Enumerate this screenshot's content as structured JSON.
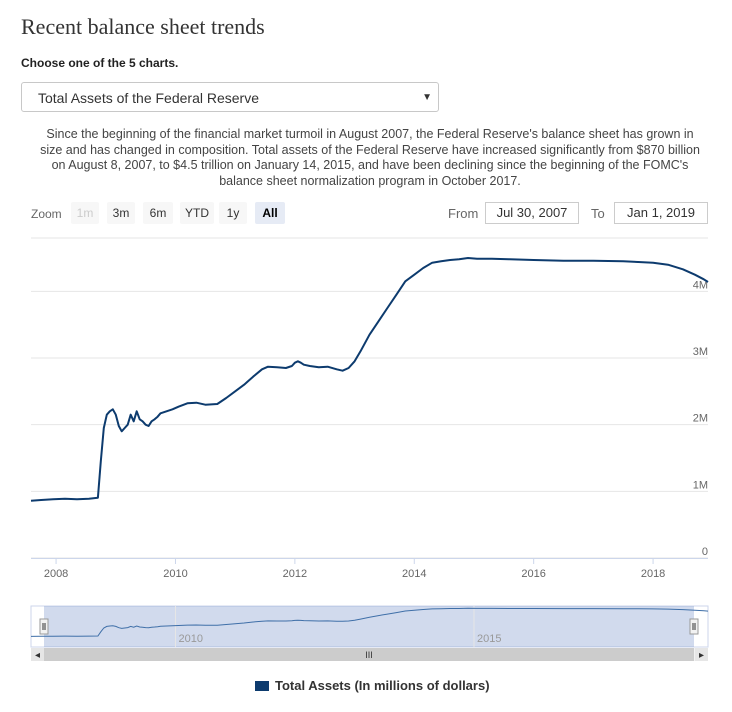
{
  "page_title": "Recent balance sheet trends",
  "chooser_label": "Choose one of the 5 charts.",
  "select": {
    "value": "Total Assets of the Federal Reserve",
    "arrow": "▼"
  },
  "description": "Since the beginning of the financial market turmoil in August 2007, the Federal Reserve's balance sheet has grown in size and has changed in composition. Total assets of the Federal Reserve have increased significantly from $870 billion on August 8, 2007, to $4.5 trillion on January 14, 2015, and have been declining since the beginning of the FOMC's balance sheet normalization program in October 2017.",
  "zoom": {
    "label": "Zoom",
    "buttons": [
      {
        "label": "1m",
        "state": "disabled"
      },
      {
        "label": "3m",
        "state": "normal"
      },
      {
        "label": "6m",
        "state": "normal"
      },
      {
        "label": "YTD",
        "state": "normal"
      },
      {
        "label": "1y",
        "state": "normal"
      },
      {
        "label": "All",
        "state": "active"
      }
    ]
  },
  "range": {
    "from_label": "From",
    "from_value": "Jul 30, 2007",
    "to_label": "To",
    "to_value": "Jan 1, 2019"
  },
  "chart_data": {
    "type": "line",
    "xlabel": "",
    "ylabel": "",
    "x_ticks": [
      "2008",
      "2010",
      "2012",
      "2014",
      "2016",
      "2018"
    ],
    "y_ticks": [
      "0",
      "1M",
      "2M",
      "3M",
      "4M"
    ],
    "xlim": [
      2007.58,
      2018.92
    ],
    "ylim": [
      0,
      4800000
    ],
    "grid": true,
    "legend_position": "bottom-center",
    "series": [
      {
        "name": "Total Assets (In millions of dollars)",
        "color": "#0d3b6e",
        "x": [
          2007.58,
          2007.75,
          2007.95,
          2008.15,
          2008.35,
          2008.55,
          2008.7,
          2008.75,
          2008.8,
          2008.85,
          2008.9,
          2008.95,
          2009.0,
          2009.05,
          2009.1,
          2009.15,
          2009.2,
          2009.25,
          2009.3,
          2009.35,
          2009.4,
          2009.45,
          2009.5,
          2009.55,
          2009.6,
          2009.65,
          2009.7,
          2009.75,
          2009.85,
          2009.95,
          2010.05,
          2010.2,
          2010.35,
          2010.5,
          2010.7,
          2010.85,
          2011.0,
          2011.15,
          2011.3,
          2011.45,
          2011.55,
          2011.7,
          2011.85,
          2011.95,
          2012.0,
          2012.05,
          2012.1,
          2012.15,
          2012.25,
          2012.4,
          2012.55,
          2012.7,
          2012.8,
          2012.9,
          2013.0,
          2013.1,
          2013.25,
          2013.4,
          2013.55,
          2013.7,
          2013.85,
          2014.0,
          2014.15,
          2014.3,
          2014.45,
          2014.6,
          2014.75,
          2014.9,
          2015.05,
          2015.3,
          2015.6,
          2016.0,
          2016.5,
          2017.0,
          2017.5,
          2017.75,
          2018.0,
          2018.25,
          2018.5,
          2018.7,
          2018.85,
          2018.92
        ],
        "values": [
          860000,
          870000,
          880000,
          890000,
          880000,
          890000,
          905000,
          1450000,
          1950000,
          2150000,
          2200000,
          2230000,
          2150000,
          1980000,
          1900000,
          1950000,
          2000000,
          2150000,
          2050000,
          2200000,
          2080000,
          2050000,
          2000000,
          1980000,
          2050000,
          2080000,
          2120000,
          2170000,
          2200000,
          2230000,
          2270000,
          2320000,
          2330000,
          2300000,
          2310000,
          2400000,
          2500000,
          2600000,
          2720000,
          2830000,
          2870000,
          2860000,
          2850000,
          2880000,
          2930000,
          2950000,
          2930000,
          2900000,
          2880000,
          2860000,
          2870000,
          2830000,
          2810000,
          2850000,
          2950000,
          3100000,
          3350000,
          3550000,
          3750000,
          3950000,
          4150000,
          4250000,
          4350000,
          4430000,
          4450000,
          4470000,
          4480000,
          4500000,
          4490000,
          4490000,
          4480000,
          4470000,
          4460000,
          4460000,
          4450000,
          4440000,
          4430000,
          4400000,
          4330000,
          4250000,
          4180000,
          4140000
        ]
      }
    ]
  },
  "navigator": {
    "labels": [
      "2010",
      "2015"
    ],
    "scroll_grip": "III",
    "left_arrow": "◂",
    "right_arrow": "▸"
  }
}
